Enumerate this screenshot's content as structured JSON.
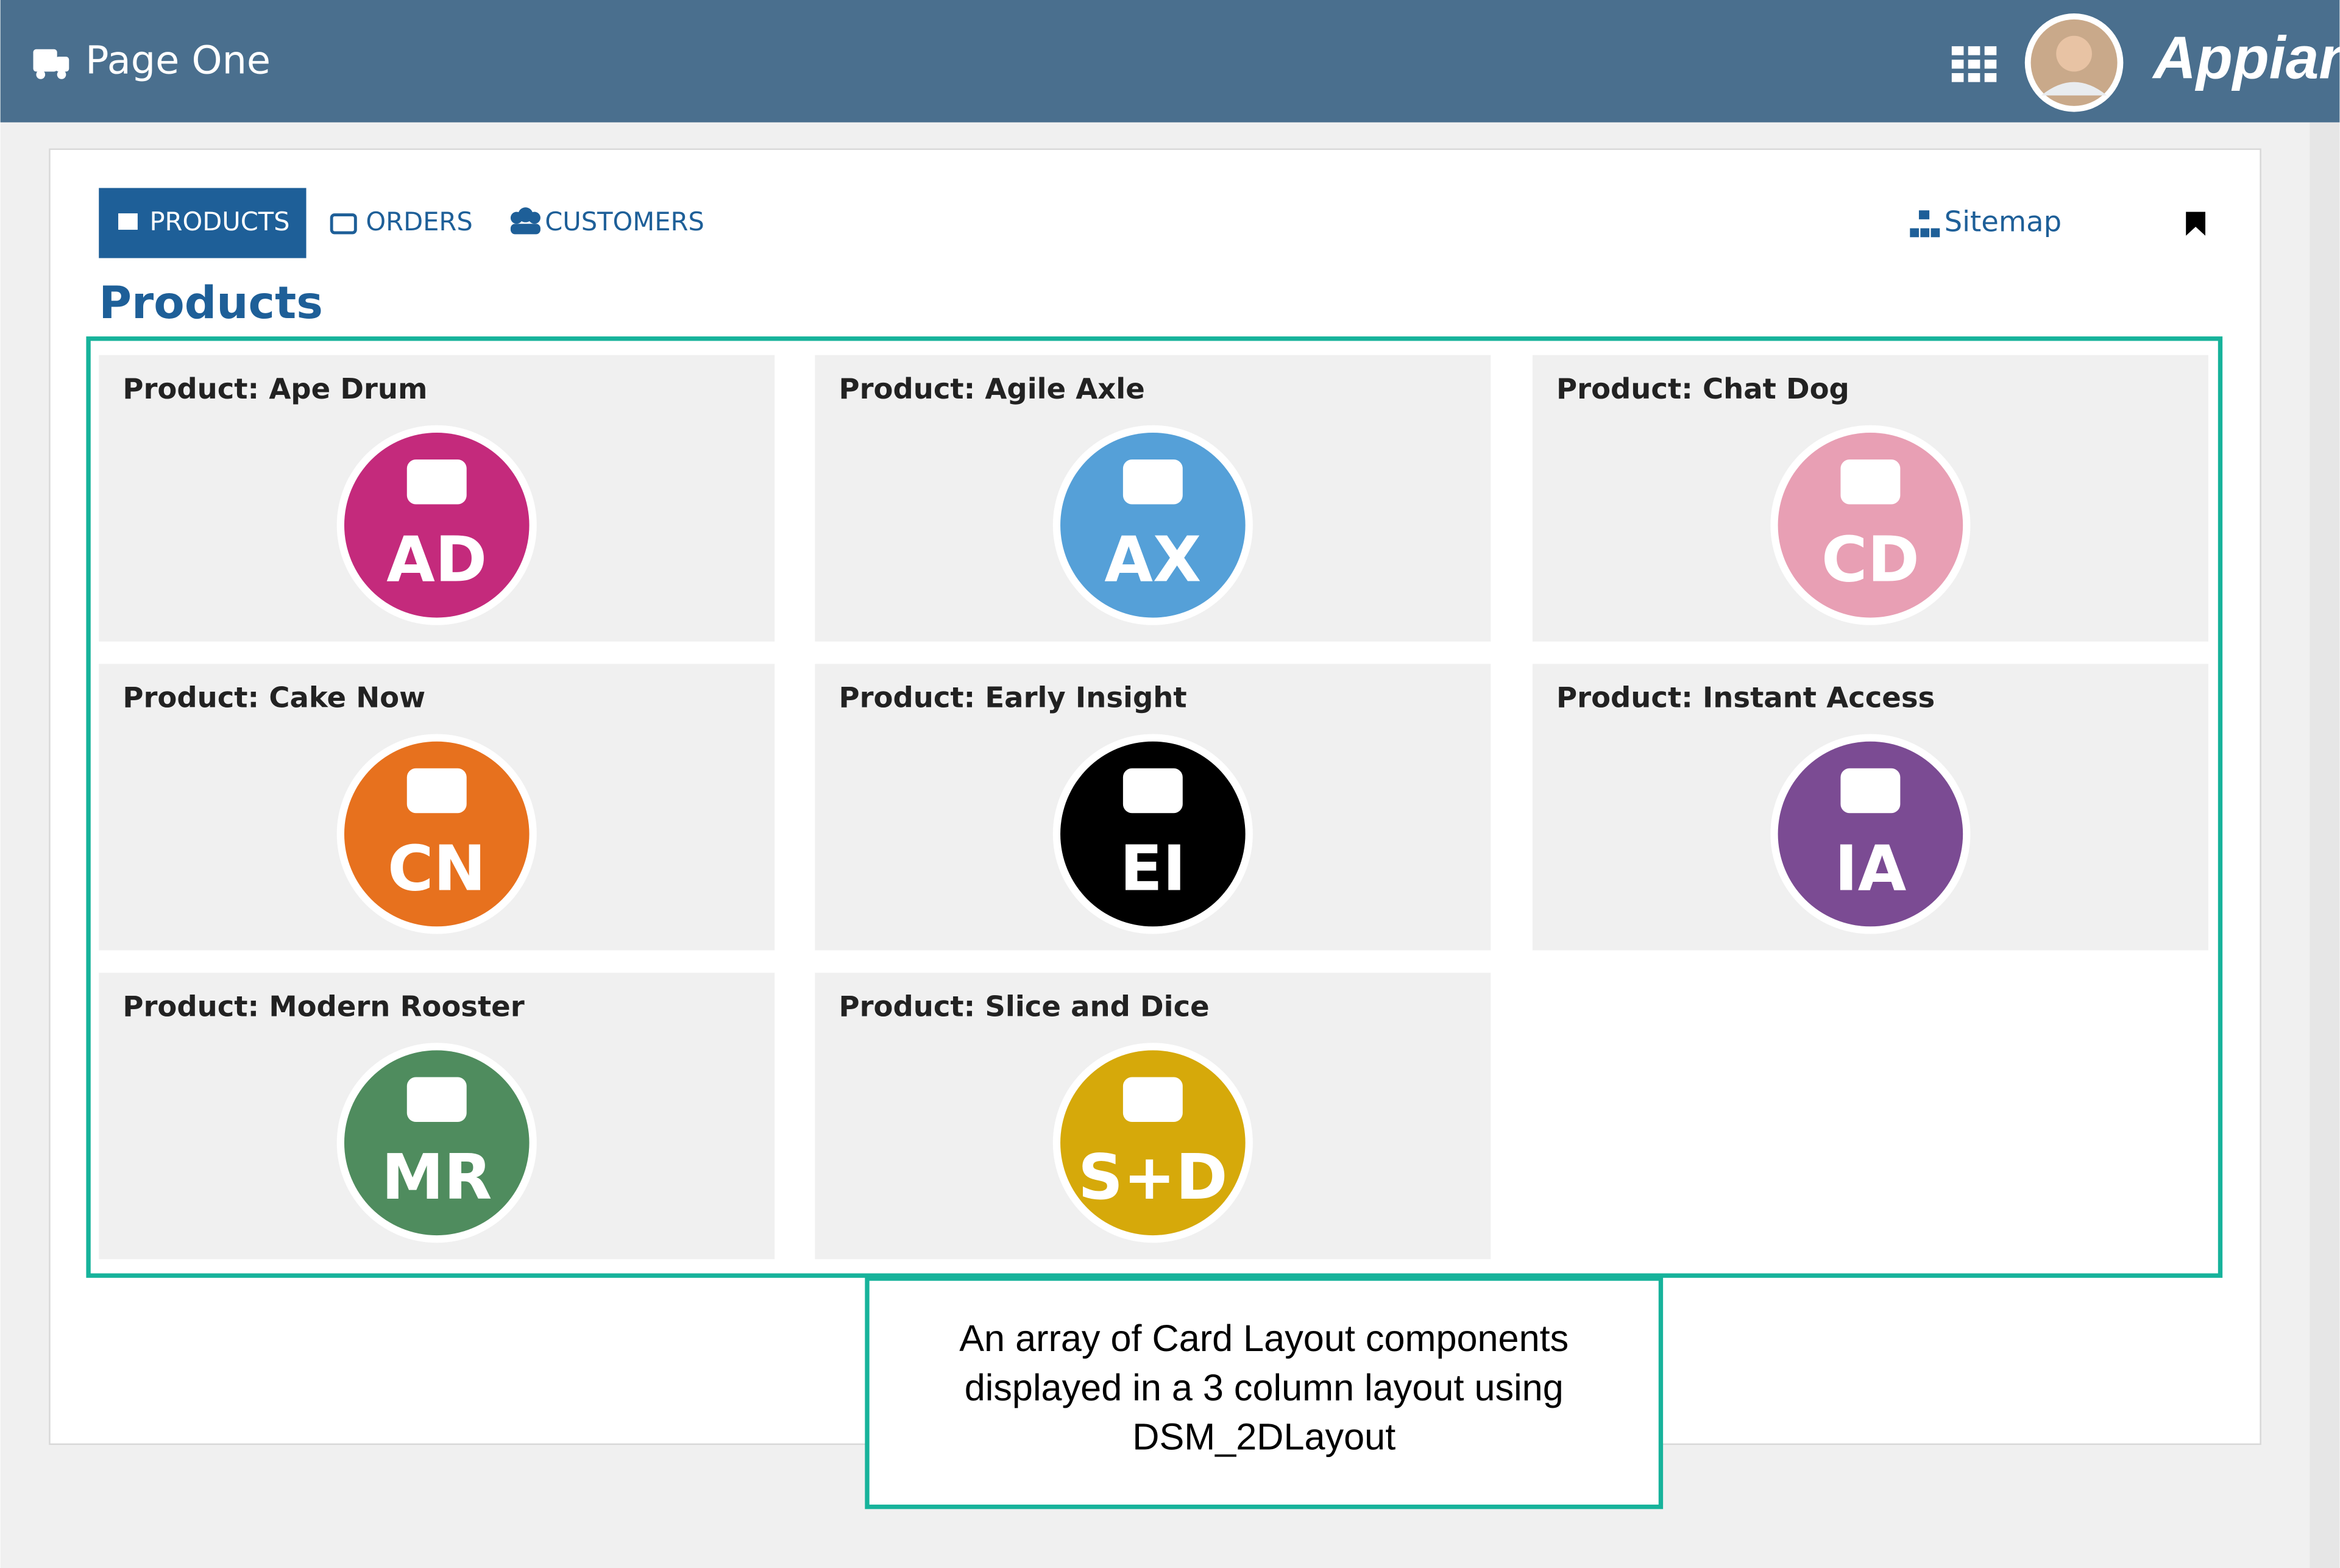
{
  "header": {
    "title": "Page One",
    "brand": "Appian"
  },
  "tabs": [
    "PRODUCTS",
    "ORDERS",
    "CUSTOMERS"
  ],
  "sitemap": "Sitemap",
  "heading": "Products",
  "cards": [
    {
      "title": "Product: Ape Drum",
      "initials": "AD",
      "color": "#c42a7c"
    },
    {
      "title": "Product: Agile Axle",
      "initials": "AX",
      "color": "#55a0d8"
    },
    {
      "title": "Product: Chat Dog",
      "initials": "CD",
      "color": "#e89fb4"
    },
    {
      "title": "Product: Cake Now",
      "initials": "CN",
      "color": "#e7711e"
    },
    {
      "title": "Product: Early Insight",
      "initials": "EI",
      "color": "#000000"
    },
    {
      "title": "Product: Instant Access",
      "initials": "IA",
      "color": "#7b4b93"
    },
    {
      "title": "Product: Modern Rooster",
      "initials": "MR",
      "color": "#4f8c5e"
    },
    {
      "title": "Product: Slice and Dice",
      "initials": "S+D",
      "color": "#d6a90a"
    }
  ],
  "annotation": {
    "lines": [
      "An array of Card Layout components",
      "displayed in a 3 column layout using",
      "DSM_2DLayout"
    ]
  }
}
